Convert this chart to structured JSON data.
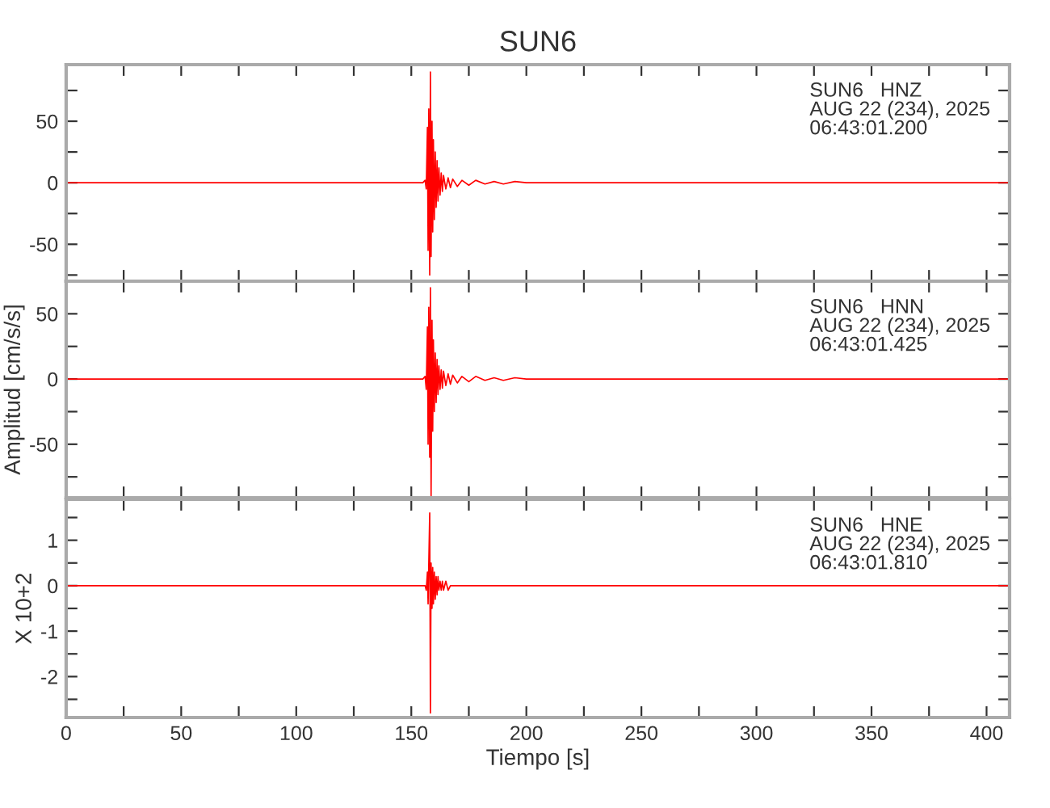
{
  "chart_data": [
    {
      "type": "line",
      "title": "SUN6",
      "tick_labels": "y",
      "annotations": [
        "SUN6   HNZ\nAUG 22 (234), 2025\n06:43:01.200"
      ],
      "x": [
        0,
        10,
        20,
        30,
        40,
        50,
        60,
        70,
        80,
        90,
        100,
        110,
        120,
        130,
        140,
        150,
        155,
        156,
        156.5,
        157,
        157.3,
        157.6,
        158,
        158.3,
        158.6,
        159,
        159.3,
        159.6,
        160,
        160.4,
        160.8,
        161.2,
        161.6,
        162,
        162.5,
        163,
        163.5,
        164,
        165,
        166,
        167,
        168,
        170,
        172,
        175,
        178,
        182,
        186,
        190,
        195,
        200,
        210,
        220,
        240,
        260,
        280,
        300,
        320,
        340,
        360,
        380,
        400,
        410
      ],
      "xlim": [
        0,
        410
      ],
      "xticks": [
        {
          "value": 0,
          "label": null
        },
        {
          "value": 25,
          "label": null
        },
        {
          "value": 50,
          "label": null
        },
        {
          "value": 75,
          "label": null
        },
        {
          "value": 100,
          "label": null
        },
        {
          "value": 125,
          "label": null
        },
        {
          "value": 150,
          "label": null
        },
        {
          "value": 175,
          "label": null
        },
        {
          "value": 200,
          "label": null
        },
        {
          "value": 225,
          "label": null
        },
        {
          "value": 250,
          "label": null
        },
        {
          "value": 275,
          "label": null
        },
        {
          "value": 300,
          "label": null
        },
        {
          "value": 325,
          "label": null
        },
        {
          "value": 350,
          "label": null
        },
        {
          "value": 375,
          "label": null
        },
        {
          "value": 400,
          "label": null
        }
      ],
      "ylim": [
        -80,
        96
      ],
      "yticks": [
        {
          "value": -75,
          "label": null
        },
        -50,
        {
          "value": -25,
          "label": null
        },
        0,
        {
          "value": 25,
          "label": null
        },
        50,
        {
          "value": 75,
          "label": null
        }
      ],
      "series": [
        {
          "color": "#ff0000",
          "values": [
            0,
            0,
            0,
            0,
            0,
            0,
            0,
            0,
            0,
            0,
            0,
            0,
            0,
            0,
            0,
            0,
            0,
            2,
            -5,
            45,
            -55,
            60,
            -75,
            90,
            -60,
            50,
            -40,
            35,
            -30,
            25,
            -20,
            18,
            -15,
            12,
            -10,
            8,
            -7,
            6,
            -5,
            4,
            -4,
            3,
            -3,
            2,
            -2,
            2,
            -1,
            1,
            -1,
            1,
            0,
            0,
            0,
            0,
            0,
            0,
            0,
            0,
            0,
            0,
            0,
            0,
            0
          ]
        }
      ]
    },
    {
      "type": "line",
      "ylabel": "Amplitud [cm/s/s]",
      "tick_labels": "y",
      "annotations": [
        "SUN6   HNN\nAUG 22 (234), 2025\n06:43:01.425"
      ],
      "x": [
        0,
        10,
        20,
        30,
        40,
        50,
        60,
        70,
        80,
        90,
        100,
        110,
        120,
        130,
        140,
        150,
        155,
        156,
        156.5,
        157,
        157.3,
        157.6,
        158,
        158.3,
        158.6,
        159,
        159.3,
        159.6,
        160,
        160.4,
        160.8,
        161.2,
        161.6,
        162,
        162.5,
        163,
        163.5,
        164,
        165,
        166,
        167,
        168,
        170,
        172,
        175,
        178,
        182,
        186,
        190,
        195,
        200,
        210,
        220,
        240,
        260,
        280,
        300,
        320,
        340,
        360,
        380,
        400,
        410
      ],
      "xlim": [
        0,
        410
      ],
      "xticks": [
        {
          "value": 0,
          "label": null
        },
        {
          "value": 25,
          "label": null
        },
        {
          "value": 50,
          "label": null
        },
        {
          "value": 75,
          "label": null
        },
        {
          "value": 100,
          "label": null
        },
        {
          "value": 125,
          "label": null
        },
        {
          "value": 150,
          "label": null
        },
        {
          "value": 175,
          "label": null
        },
        {
          "value": 200,
          "label": null
        },
        {
          "value": 225,
          "label": null
        },
        {
          "value": 250,
          "label": null
        },
        {
          "value": 275,
          "label": null
        },
        {
          "value": 300,
          "label": null
        },
        {
          "value": 325,
          "label": null
        },
        {
          "value": 350,
          "label": null
        },
        {
          "value": 375,
          "label": null
        },
        {
          "value": 400,
          "label": null
        }
      ],
      "ylim": [
        -91,
        75
      ],
      "yticks": [
        {
          "value": -75,
          "label": null
        },
        -50,
        {
          "value": -25,
          "label": null
        },
        0,
        {
          "value": 25,
          "label": null
        },
        50
      ],
      "series": [
        {
          "color": "#ff0000",
          "values": [
            0,
            0,
            0,
            0,
            0,
            0,
            0,
            0,
            0,
            0,
            0,
            0,
            0,
            0,
            0,
            0,
            0,
            2,
            -8,
            40,
            -50,
            55,
            -60,
            70,
            -90,
            45,
            -40,
            30,
            -25,
            20,
            -18,
            15,
            -12,
            10,
            -8,
            7,
            -7,
            6,
            -5,
            4,
            -4,
            3,
            -3,
            2,
            -2,
            2,
            -1,
            1,
            -1,
            1,
            0,
            0,
            0,
            0,
            0,
            0,
            0,
            0,
            0,
            0,
            0,
            0,
            0
          ]
        }
      ]
    },
    {
      "type": "line",
      "xlabel": "Tiempo [s]",
      "ylabel": "X 10+2",
      "annotations": [
        "SUN6   HNE\nAUG 22 (234), 2025\n06:43:01.810"
      ],
      "x": [
        0,
        10,
        20,
        30,
        40,
        50,
        60,
        70,
        80,
        90,
        100,
        110,
        120,
        130,
        140,
        150,
        155,
        156,
        156.5,
        157,
        157.3,
        157.6,
        158,
        158.3,
        158.6,
        159,
        159.3,
        159.6,
        160,
        160.4,
        160.8,
        161.2,
        161.6,
        162,
        162.5,
        163,
        163.5,
        164,
        165,
        166,
        167,
        168,
        170,
        172,
        175,
        178,
        182,
        186,
        190,
        195,
        200,
        210,
        220,
        240,
        260,
        280,
        300,
        320,
        340,
        360,
        380,
        400,
        410
      ],
      "xlim": [
        0,
        410
      ],
      "xticks": [
        0,
        {
          "value": 25,
          "label": null
        },
        50,
        {
          "value": 75,
          "label": null
        },
        100,
        {
          "value": 125,
          "label": null
        },
        150,
        {
          "value": 175,
          "label": null
        },
        200,
        {
          "value": 225,
          "label": null
        },
        250,
        {
          "value": 275,
          "label": null
        },
        300,
        {
          "value": 325,
          "label": null
        },
        350,
        {
          "value": 375,
          "label": null
        },
        400
      ],
      "ylim": [
        -2.9,
        1.9
      ],
      "yticks": [
        {
          "value": -2.5,
          "label": null
        },
        -2,
        {
          "value": -1.5,
          "label": null
        },
        -1,
        {
          "value": -0.5,
          "label": null
        },
        0,
        {
          "value": 0.5,
          "label": null
        },
        1,
        {
          "value": 1.5,
          "label": null
        }
      ],
      "series": [
        {
          "color": "#ff0000",
          "values": [
            0,
            0,
            0,
            0,
            0,
            0,
            0,
            0,
            0,
            0,
            0,
            0,
            0,
            0,
            0,
            0,
            0,
            0,
            -0.1,
            0.3,
            -0.4,
            0.5,
            1.6,
            -2.8,
            0.5,
            -0.5,
            0.4,
            -0.4,
            0.3,
            -0.3,
            0.2,
            -0.2,
            0.2,
            -0.1,
            0.1,
            -0.1,
            0.1,
            -0.1,
            0.1,
            -0.1,
            0,
            0,
            0,
            0,
            0,
            0,
            0,
            0,
            0,
            0,
            0,
            0,
            0,
            0,
            0,
            0,
            0,
            0,
            0,
            0,
            0,
            0,
            0
          ]
        }
      ]
    }
  ]
}
